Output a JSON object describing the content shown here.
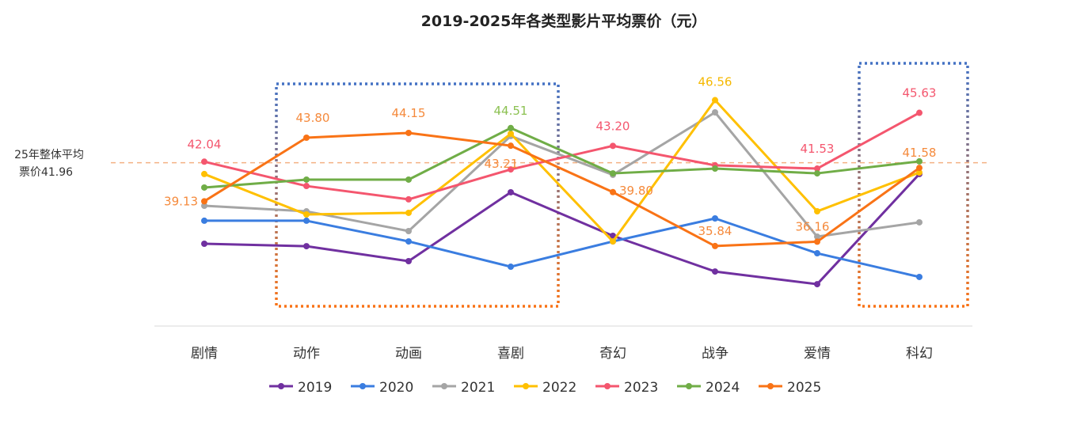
{
  "chart_data": {
    "type": "line",
    "title": "2019-2025年各类型影片平均票价（元）",
    "categories": [
      "剧情",
      "动作",
      "动画",
      "喜剧",
      "奇幻",
      "战争",
      "爱情",
      "科幻"
    ],
    "grid": false,
    "legend_position": "bottom",
    "series": [
      {
        "name": "2019",
        "color": "#7030a0",
        "values": [
          36.01,
          35.83,
          34.73,
          39.79,
          36.59,
          33.97,
          33.04,
          41.13
        ]
      },
      {
        "name": "2020",
        "color": "#3a7de0",
        "values": [
          37.7,
          37.7,
          36.18,
          34.32,
          36.18,
          37.87,
          35.31,
          33.57
        ]
      },
      {
        "name": "2021",
        "color": "#a5a5a5",
        "values": [
          38.8,
          38.39,
          36.94,
          43.92,
          41.07,
          45.66,
          36.53,
          37.58
        ]
      },
      {
        "name": "2022",
        "color": "#ffc000",
        "values": [
          41.13,
          38.16,
          38.28,
          44.09,
          36.18,
          46.56,
          38.39,
          41.24
        ]
      },
      {
        "name": "2023",
        "color": "#f4566e",
        "values": [
          42.04,
          40.25,
          39.27,
          41.47,
          43.2,
          41.77,
          41.53,
          45.63
        ]
      },
      {
        "name": "2024",
        "color": "#70ad47",
        "values": [
          40.14,
          40.72,
          40.72,
          44.51,
          41.18,
          41.53,
          41.18,
          42.06
        ]
      },
      {
        "name": "2025",
        "color": "#f97316",
        "values": [
          39.13,
          43.8,
          44.15,
          43.21,
          39.8,
          35.84,
          36.16,
          41.58
        ]
      }
    ],
    "data_labels": [
      {
        "series": "2023",
        "category": "剧情",
        "text": "42.04"
      },
      {
        "series": "2025",
        "category": "剧情",
        "text": "39.13"
      },
      {
        "series": "2025",
        "category": "动作",
        "text": "43.80"
      },
      {
        "series": "2025",
        "category": "动画",
        "text": "44.15"
      },
      {
        "series": "2024",
        "category": "喜剧",
        "text": "44.51"
      },
      {
        "series": "2025",
        "category": "喜剧",
        "text": "43.21"
      },
      {
        "series": "2023",
        "category": "奇幻",
        "text": "43.20"
      },
      {
        "series": "2025",
        "category": "奇幻",
        "text": "39.80"
      },
      {
        "series": "2022",
        "category": "战争",
        "text": "46.56"
      },
      {
        "series": "2025",
        "category": "战争",
        "text": "35.84"
      },
      {
        "series": "2023",
        "category": "爱情",
        "text": "41.53"
      },
      {
        "series": "2025",
        "category": "爱情",
        "text": "36.16"
      },
      {
        "series": "2023",
        "category": "科幻",
        "text": "45.63"
      },
      {
        "series": "2025",
        "category": "科幻",
        "text": "41.58"
      }
    ],
    "reference_line": {
      "value": 41.96,
      "label_line1": "25年整体平均",
      "label_line2": "票价41.96",
      "color": "#f4b183"
    },
    "highlight_boxes": [
      {
        "from": "动作",
        "to": "喜剧"
      },
      {
        "from": "科幻",
        "to": "科幻"
      }
    ]
  }
}
